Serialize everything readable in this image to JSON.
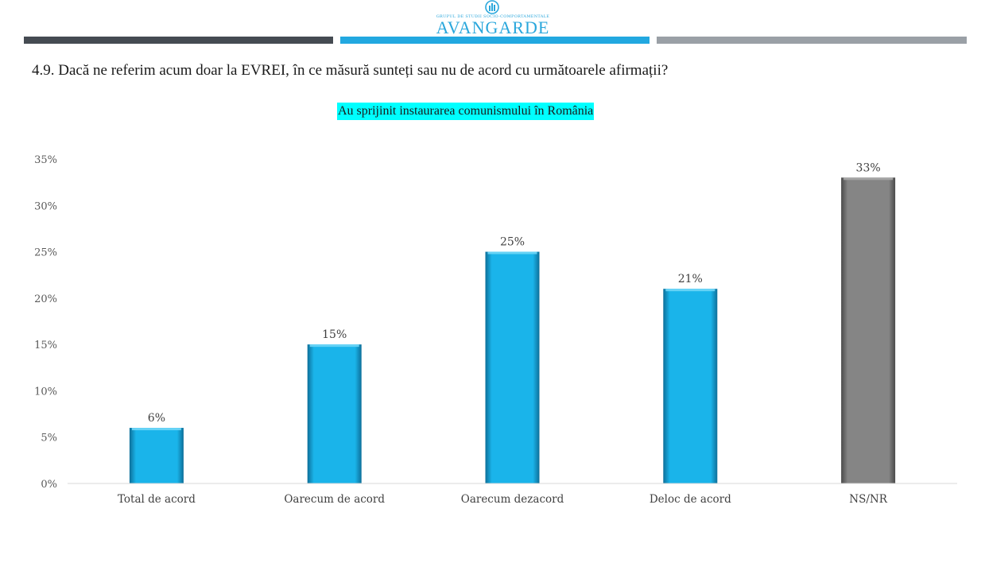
{
  "header": {
    "logo_tagline": "GRUPUL DE STUDII SOCIO-COMPORTAMENTALE",
    "logo_name": "AVANGARDE",
    "colors": {
      "dark": "#454b52",
      "blue": "#22a8e0",
      "grey": "#9aa0a6"
    }
  },
  "question": "4.9. Dacă ne referim acum doar la EVREI, în ce măsură sunteți sau nu de acord cu următoarele afirmații?",
  "chart_data": {
    "type": "bar",
    "title": "Au sprijinit instaurarea comunismului în România",
    "title_highlight": "#00ffff",
    "categories": [
      "Total de acord",
      "Oarecum de acord",
      "Oarecum dezacord",
      "Deloc de acord",
      "NS/NR"
    ],
    "values": [
      6,
      15,
      25,
      21,
      33
    ],
    "value_labels": [
      "6%",
      "15%",
      "25%",
      "21%",
      "33%"
    ],
    "bar_colors": [
      "#1ab4ea",
      "#1ab4ea",
      "#1ab4ea",
      "#1ab4ea",
      "#858585"
    ],
    "ylim": [
      0,
      35
    ],
    "yticks": [
      0,
      5,
      10,
      15,
      20,
      25,
      30,
      35
    ],
    "ytick_labels": [
      "0%",
      "5%",
      "10%",
      "15%",
      "20%",
      "25%",
      "30%",
      "35%"
    ],
    "xlabel": "",
    "ylabel": "",
    "grid": false,
    "legend": "none"
  }
}
